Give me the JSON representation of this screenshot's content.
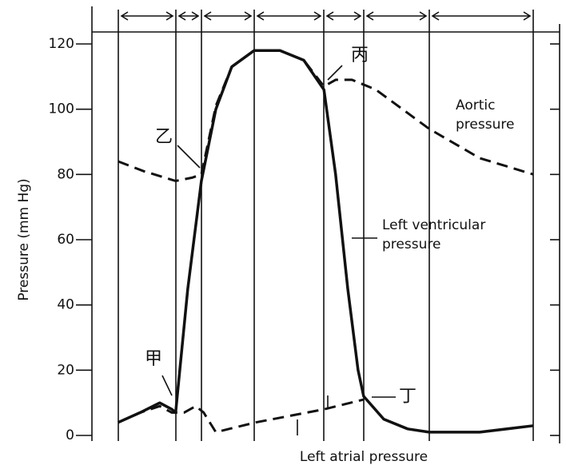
{
  "chart_data": {
    "type": "line",
    "y_label": "Pressure (mm Hg)",
    "xlim": [
      0,
      100
    ],
    "ylim": [
      0,
      120
    ],
    "yticks": [
      0,
      20,
      40,
      60,
      80,
      100,
      120
    ],
    "series": [
      {
        "name": "Left ventricular pressure",
        "color": "#111111",
        "dash": false,
        "x": [
          5.6,
          10.3,
          14.5,
          17.1,
          17.9,
          20.5,
          23.4,
          26.5,
          29.9,
          34.7,
          40.2,
          45.3,
          49.6,
          52.1,
          54.7,
          56.9,
          58.1,
          62.4,
          67.5,
          72.1,
          82.9,
          94.4
        ],
        "values": [
          4,
          7,
          10,
          8,
          7,
          45,
          78,
          100,
          113,
          118,
          118,
          115,
          106,
          80,
          45,
          20,
          12,
          5,
          2,
          1,
          1,
          3
        ]
      },
      {
        "name": "Aortic pressure",
        "color": "#111111",
        "dash": true,
        "x": [
          5.6,
          11.1,
          17.9,
          21.4,
          23.4,
          26.5,
          29.9,
          34.7,
          40.2,
          45.3,
          49.6,
          52.1,
          55.6,
          60.7,
          72.1,
          82.9,
          94.4
        ],
        "values": [
          84,
          81,
          78,
          79,
          80,
          101,
          113,
          118,
          118,
          115,
          107,
          109,
          109,
          106,
          94,
          85,
          80
        ]
      },
      {
        "name": "Left atrial pressure",
        "color": "#111111",
        "dash": true,
        "x": [
          5.6,
          10.3,
          14.5,
          17.1,
          19.7,
          22.2,
          23.9,
          26.5,
          35.0,
          49.6,
          58.1
        ],
        "values": [
          4,
          7,
          9,
          7,
          7,
          9,
          7,
          1,
          4,
          8,
          11
        ]
      }
    ],
    "annotations": {
      "jia": "甲",
      "yi": "乙",
      "bing": "丙",
      "ding": "丁"
    }
  }
}
